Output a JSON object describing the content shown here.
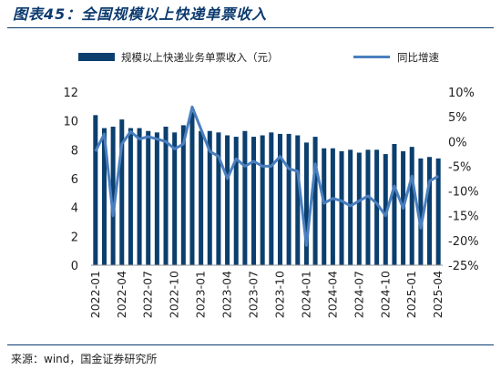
{
  "title": "图表45：全国规模以上快递单票收入",
  "source": "来源：wind，国金证券研究所",
  "colors": {
    "bar": "#0b3f6e",
    "line": "#4a7fbf",
    "title": "#0b3a6e"
  },
  "chart_data": {
    "type": "bar+line",
    "legend": [
      "规模以上快递业务单票收入（元）",
      "同比增速"
    ],
    "legend_position": "top",
    "grid": false,
    "y_left": {
      "min": 0,
      "max": 12,
      "ticks": [
        "0",
        "2",
        "4",
        "6",
        "8",
        "10",
        "12"
      ]
    },
    "y_right": {
      "min": -25,
      "max": 10,
      "ticks": [
        "10%",
        "5%",
        "0%",
        "-5%",
        "-10%",
        "-15%",
        "-20%",
        "-25%"
      ]
    },
    "x_tick_labels": [
      "2022-01",
      "2022-04",
      "2022-07",
      "2022-10",
      "2023-01",
      "2023-04",
      "2023-07",
      "2023-10",
      "2024-01",
      "2024-04",
      "2024-07",
      "2024-10",
      "2025-01",
      "2025-04"
    ],
    "x": [
      "2022-01",
      "2022-02",
      "2022-03",
      "2022-04",
      "2022-05",
      "2022-06",
      "2022-07",
      "2022-08",
      "2022-09",
      "2022-10",
      "2022-11",
      "2022-12",
      "2023-01",
      "2023-02",
      "2023-03",
      "2023-04",
      "2023-05",
      "2023-06",
      "2023-07",
      "2023-08",
      "2023-09",
      "2023-10",
      "2023-11",
      "2023-12",
      "2024-01",
      "2024-02",
      "2024-03",
      "2024-04",
      "2024-05",
      "2024-06",
      "2024-07",
      "2024-08",
      "2024-09",
      "2024-10",
      "2024-11",
      "2024-12",
      "2025-01",
      "2025-02",
      "2025-03",
      "2025-04"
    ],
    "series": [
      {
        "name": "规模以上快递业务单票收入（元）",
        "type": "bar",
        "axis": "left",
        "values": [
          10.4,
          9.5,
          9.6,
          10.1,
          9.5,
          9.5,
          9.3,
          9.2,
          9.6,
          9.2,
          9.7,
          10.6,
          9.3,
          9.3,
          9.2,
          9.0,
          8.9,
          9.3,
          8.9,
          9.0,
          9.2,
          9.1,
          9.1,
          9.0,
          8.5,
          8.9,
          8.1,
          8.1,
          7.9,
          8.0,
          7.8,
          8.0,
          8.0,
          7.7,
          8.4,
          7.9,
          8.2,
          7.4,
          7.5,
          7.4
        ]
      },
      {
        "name": "同比增速",
        "type": "line",
        "axis": "right",
        "values": [
          -2.0,
          1.5,
          -15.0,
          -0.5,
          2.0,
          0.5,
          1.0,
          0.5,
          0.0,
          -1.5,
          -0.5,
          7.0,
          2.5,
          -2.0,
          -3.0,
          -7.5,
          -3.5,
          -5.0,
          -4.0,
          -5.0,
          -5.0,
          -3.0,
          -5.5,
          -6.0,
          -21.0,
          -4.5,
          -12.5,
          -11.5,
          -12.0,
          -13.0,
          -12.0,
          -11.0,
          -12.5,
          -15.0,
          -9.0,
          -13.5,
          -7.0,
          -17.5,
          -8.0,
          -7.0
        ]
      }
    ]
  }
}
